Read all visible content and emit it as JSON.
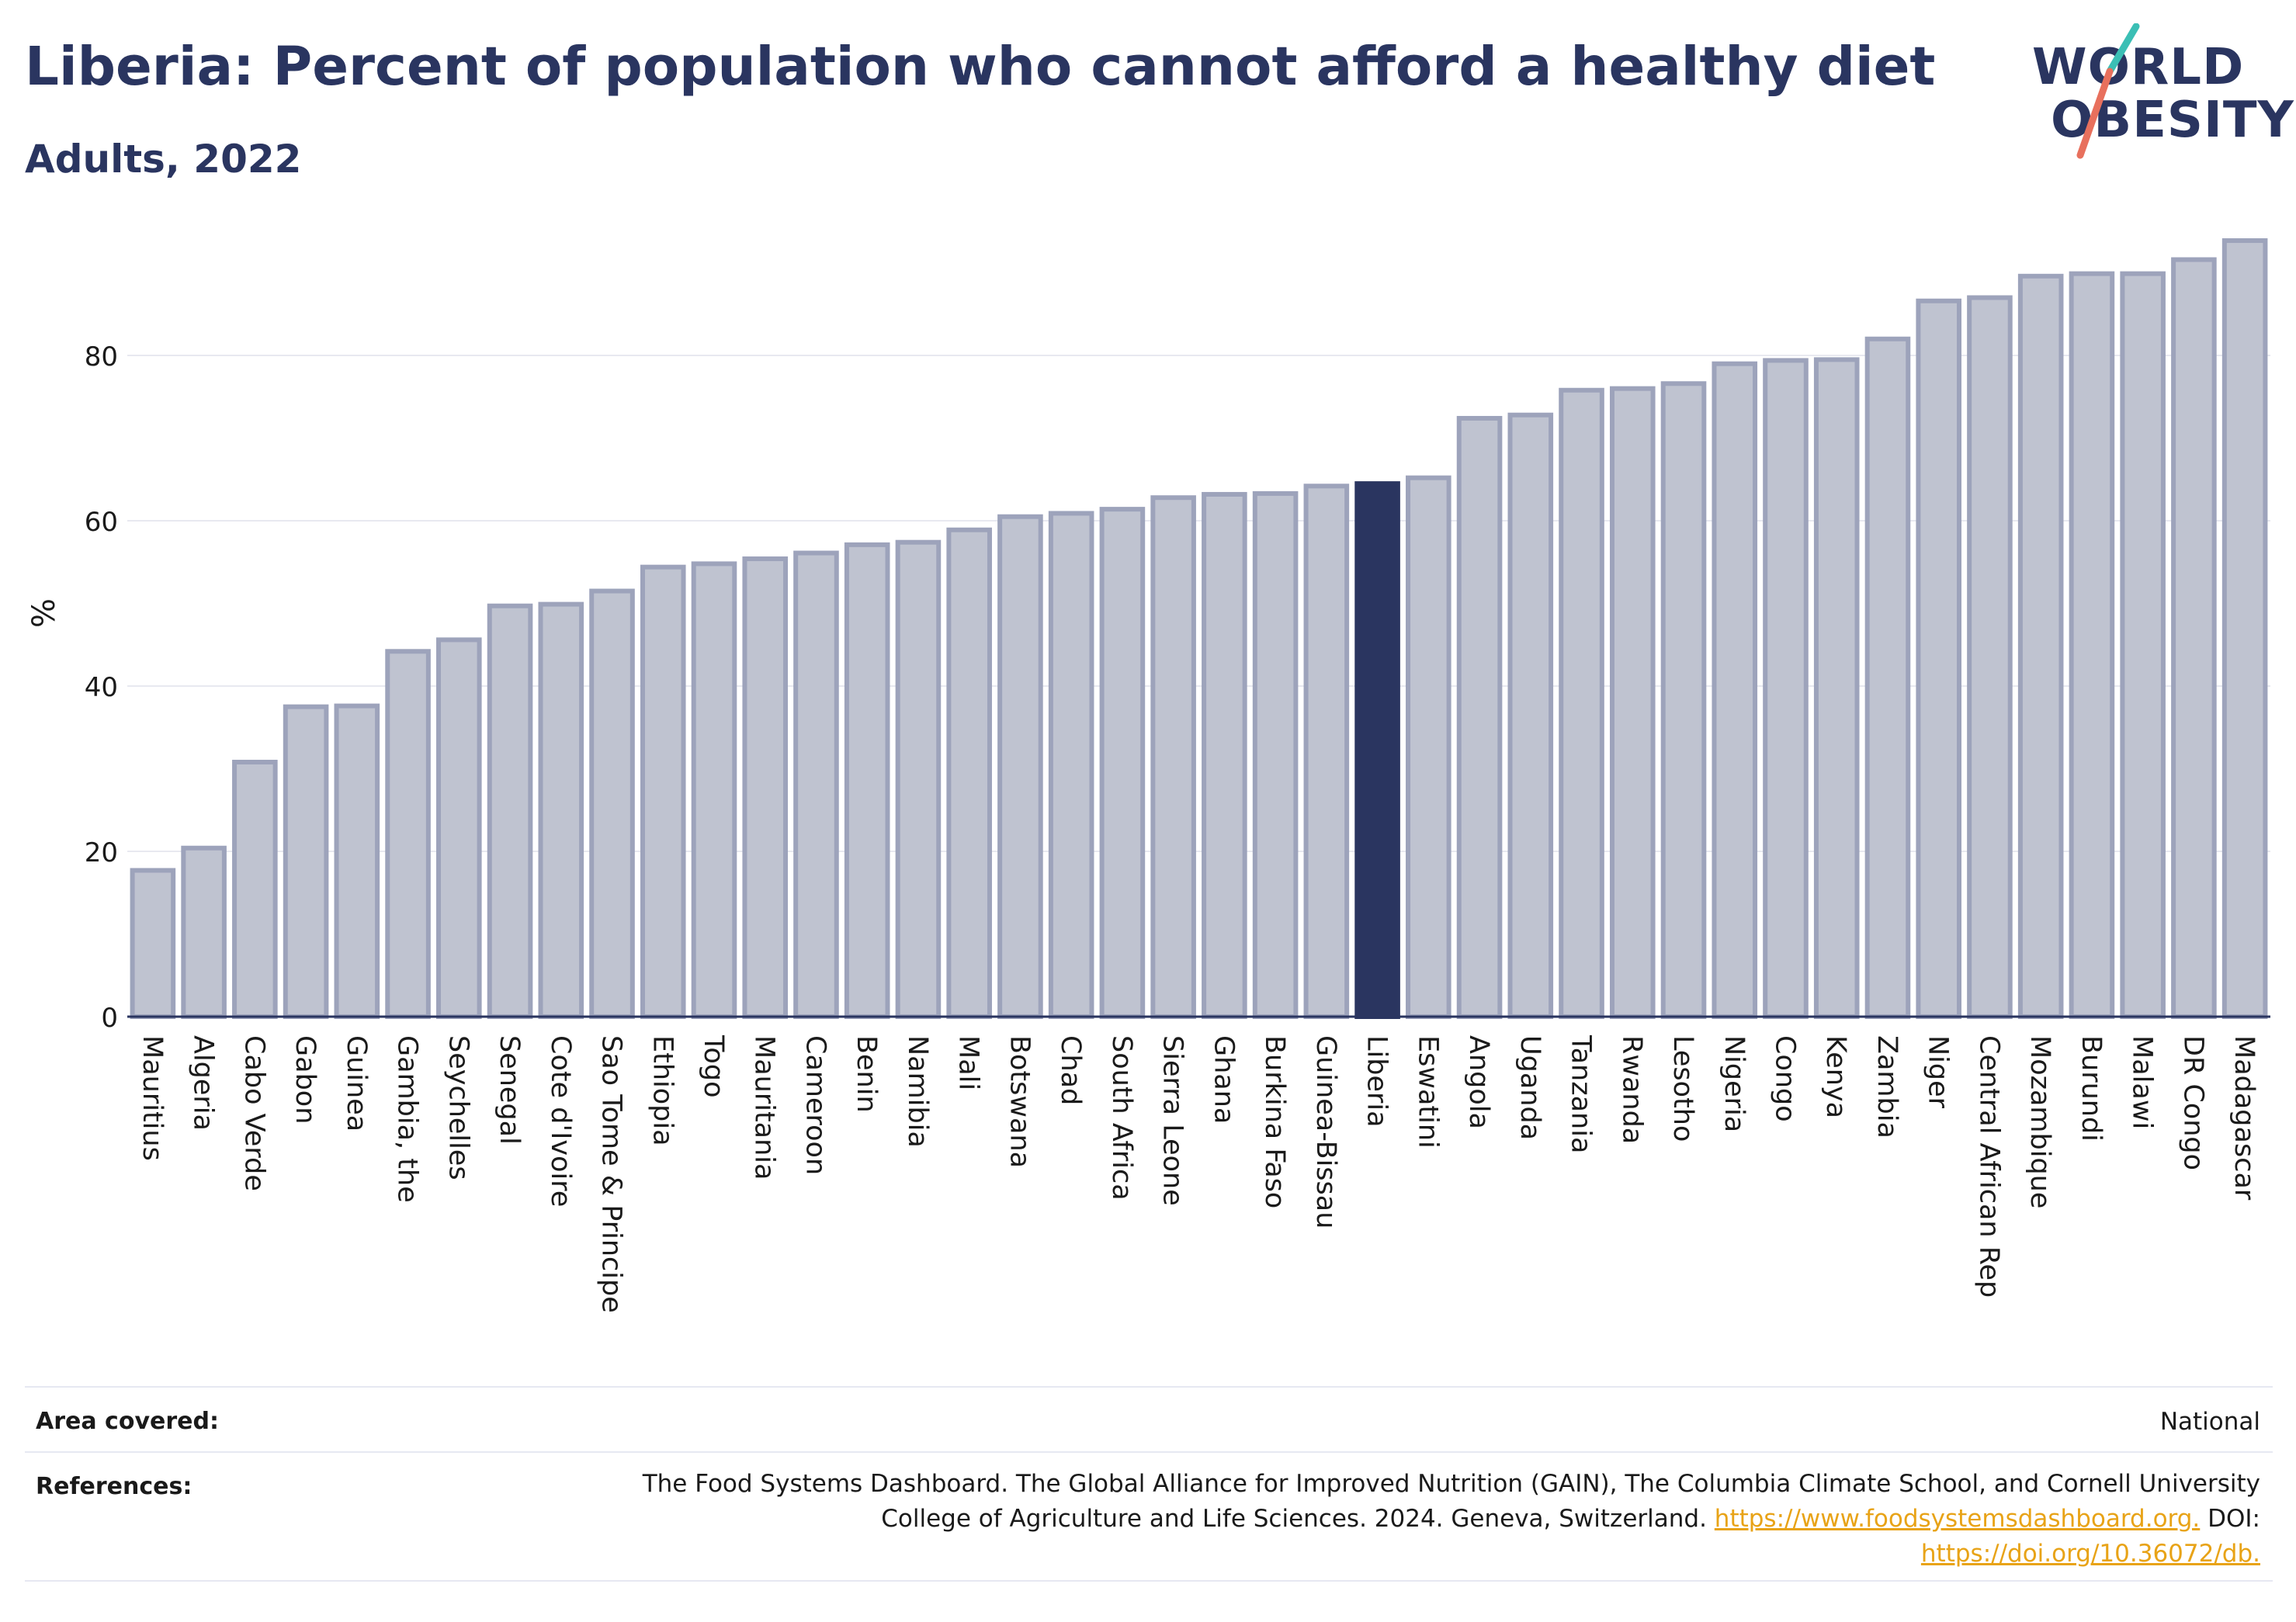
{
  "header": {
    "title": "Liberia: Percent of population who cannot afford a healthy diet",
    "subtitle": "Adults, 2022"
  },
  "logo": {
    "line1": "WORLD",
    "line2": "OBESITY"
  },
  "colors": {
    "bar_fill": "#bfc3d0",
    "bar_edge": "#9da3bb",
    "highlight": "#2a3560",
    "grid": "#e8e9f0",
    "axis_text": "#1a1a1a",
    "logo_teal": "#3bbfb5",
    "logo_coral": "#e8705d",
    "link": "#e8a317"
  },
  "chart_data": {
    "type": "bar",
    "title": "Liberia: Percent of population who cannot afford a healthy diet",
    "subtitle": "Adults, 2022",
    "xlabel": "",
    "ylabel": "%",
    "ylim": [
      0,
      97
    ],
    "yticks": [
      0,
      20,
      40,
      60,
      80
    ],
    "grid": true,
    "highlight": "Liberia",
    "categories": [
      "Mauritius",
      "Algeria",
      "Cabo Verde",
      "Gabon",
      "Guinea",
      "Gambia, the",
      "Seychelles",
      "Senegal",
      "Cote d'Ivoire",
      "Sao Tome & Principe",
      "Ethiopia",
      "Togo",
      "Mauritania",
      "Cameroon",
      "Benin",
      "Namibia",
      "Mali",
      "Botswana",
      "Chad",
      "South Africa",
      "Sierra Leone",
      "Ghana",
      "Burkina Faso",
      "Guinea-Bissau",
      "Liberia",
      "Eswatini",
      "Angola",
      "Uganda",
      "Tanzania",
      "Rwanda",
      "Lesotho",
      "Nigeria",
      "Congo",
      "Kenya",
      "Zambia",
      "Niger",
      "Central African Rep",
      "Mozambique",
      "Burundi",
      "Malawi",
      "DR Congo",
      "Madagascar"
    ],
    "values": [
      17.7,
      20.4,
      30.8,
      37.5,
      37.6,
      44.2,
      45.6,
      49.7,
      49.9,
      51.5,
      54.4,
      54.8,
      55.4,
      56.1,
      57.1,
      57.4,
      58.9,
      60.5,
      60.9,
      61.4,
      62.8,
      63.2,
      63.3,
      64.2,
      64.5,
      65.2,
      72.4,
      72.8,
      75.8,
      76.0,
      76.6,
      79.0,
      79.4,
      79.5,
      82.0,
      86.6,
      87.0,
      89.6,
      89.9,
      89.9,
      91.6,
      93.9
    ]
  },
  "footer": {
    "area_label": "Area covered:",
    "area_value": "National",
    "ref_label": "References:",
    "ref_text_1": "The Food Systems Dashboard. The Global Alliance for Improved Nutrition (GAIN), The Columbia Climate School, and Cornell University",
    "ref_text_2": "College of Agriculture and Life Sciences. 2024. Geneva, Switzerland.",
    "ref_link_1": "https://www.foodsystemsdashboard.org.",
    "ref_doi_label": "DOI:",
    "ref_link_2": "https://doi.org/10.36072/db."
  }
}
